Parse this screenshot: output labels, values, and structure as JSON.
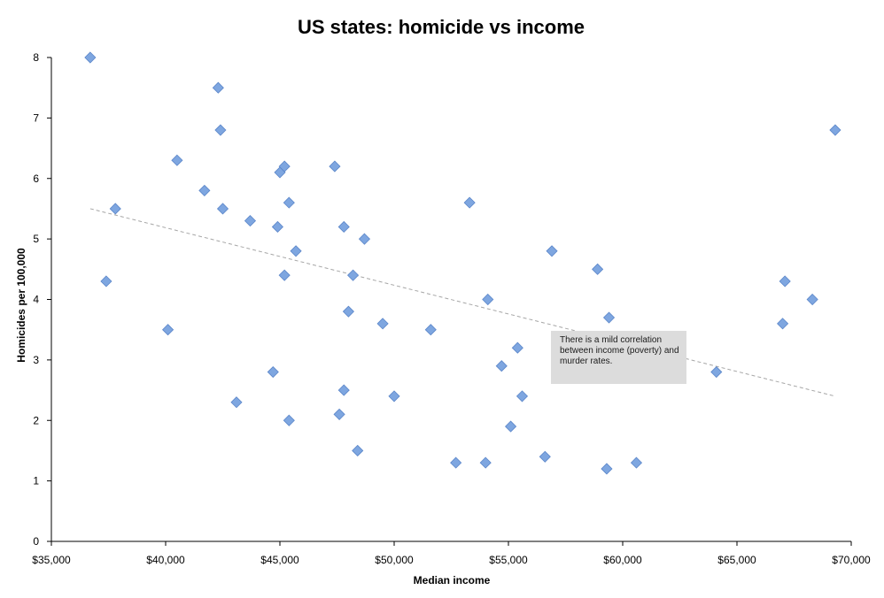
{
  "chart_data": {
    "type": "scatter",
    "title": "US states: homicide vs income",
    "xlabel": "Median income",
    "ylabel": "Homicides per 100,000",
    "xlim": [
      35000,
      70000
    ],
    "ylim": [
      0,
      8
    ],
    "x_ticks": [
      "$35,000",
      "$40,000",
      "$45,000",
      "$50,000",
      "$55,000",
      "$60,000",
      "$65,000",
      "$70,000"
    ],
    "y_ticks": [
      "0",
      "1",
      "2",
      "3",
      "4",
      "5",
      "6",
      "7",
      "8"
    ],
    "grid": false,
    "legend": "none",
    "marker_color": "#7ea6e0",
    "trendline": {
      "style": "dashed",
      "color": "#a6a6a6",
      "x": [
        36700,
        69300
      ],
      "y": [
        5.5,
        2.4
      ]
    },
    "annotation": "There is a mild correlation between income (poverty) and murder rates.",
    "points": [
      {
        "x": 36700,
        "y": 8.0
      },
      {
        "x": 37400,
        "y": 4.3
      },
      {
        "x": 37800,
        "y": 5.5
      },
      {
        "x": 40100,
        "y": 3.5
      },
      {
        "x": 40500,
        "y": 6.3
      },
      {
        "x": 41700,
        "y": 5.8
      },
      {
        "x": 42300,
        "y": 7.5
      },
      {
        "x": 42400,
        "y": 6.8
      },
      {
        "x": 42500,
        "y": 5.5
      },
      {
        "x": 43100,
        "y": 2.3
      },
      {
        "x": 43700,
        "y": 5.3
      },
      {
        "x": 44700,
        "y": 2.8
      },
      {
        "x": 44900,
        "y": 5.2
      },
      {
        "x": 45000,
        "y": 6.1
      },
      {
        "x": 45200,
        "y": 6.2
      },
      {
        "x": 45200,
        "y": 4.4
      },
      {
        "x": 45400,
        "y": 5.6
      },
      {
        "x": 45400,
        "y": 2.0
      },
      {
        "x": 45700,
        "y": 4.8
      },
      {
        "x": 47400,
        "y": 6.2
      },
      {
        "x": 47600,
        "y": 2.1
      },
      {
        "x": 47800,
        "y": 5.2
      },
      {
        "x": 47800,
        "y": 2.5
      },
      {
        "x": 48000,
        "y": 3.8
      },
      {
        "x": 48200,
        "y": 4.4
      },
      {
        "x": 48400,
        "y": 1.5
      },
      {
        "x": 48700,
        "y": 5.0
      },
      {
        "x": 49500,
        "y": 3.6
      },
      {
        "x": 50000,
        "y": 2.4
      },
      {
        "x": 51600,
        "y": 3.5
      },
      {
        "x": 52700,
        "y": 1.3
      },
      {
        "x": 53300,
        "y": 5.6
      },
      {
        "x": 54000,
        "y": 1.3
      },
      {
        "x": 54100,
        "y": 4.0
      },
      {
        "x": 54700,
        "y": 2.9
      },
      {
        "x": 55100,
        "y": 1.9
      },
      {
        "x": 55400,
        "y": 3.2
      },
      {
        "x": 55600,
        "y": 2.4
      },
      {
        "x": 56600,
        "y": 1.4
      },
      {
        "x": 56900,
        "y": 4.8
      },
      {
        "x": 58900,
        "y": 4.5
      },
      {
        "x": 59300,
        "y": 1.2
      },
      {
        "x": 59400,
        "y": 3.7
      },
      {
        "x": 60600,
        "y": 1.3
      },
      {
        "x": 64100,
        "y": 2.8
      },
      {
        "x": 67000,
        "y": 3.6
      },
      {
        "x": 67100,
        "y": 4.3
      },
      {
        "x": 68300,
        "y": 4.0
      },
      {
        "x": 69300,
        "y": 6.8
      }
    ]
  }
}
